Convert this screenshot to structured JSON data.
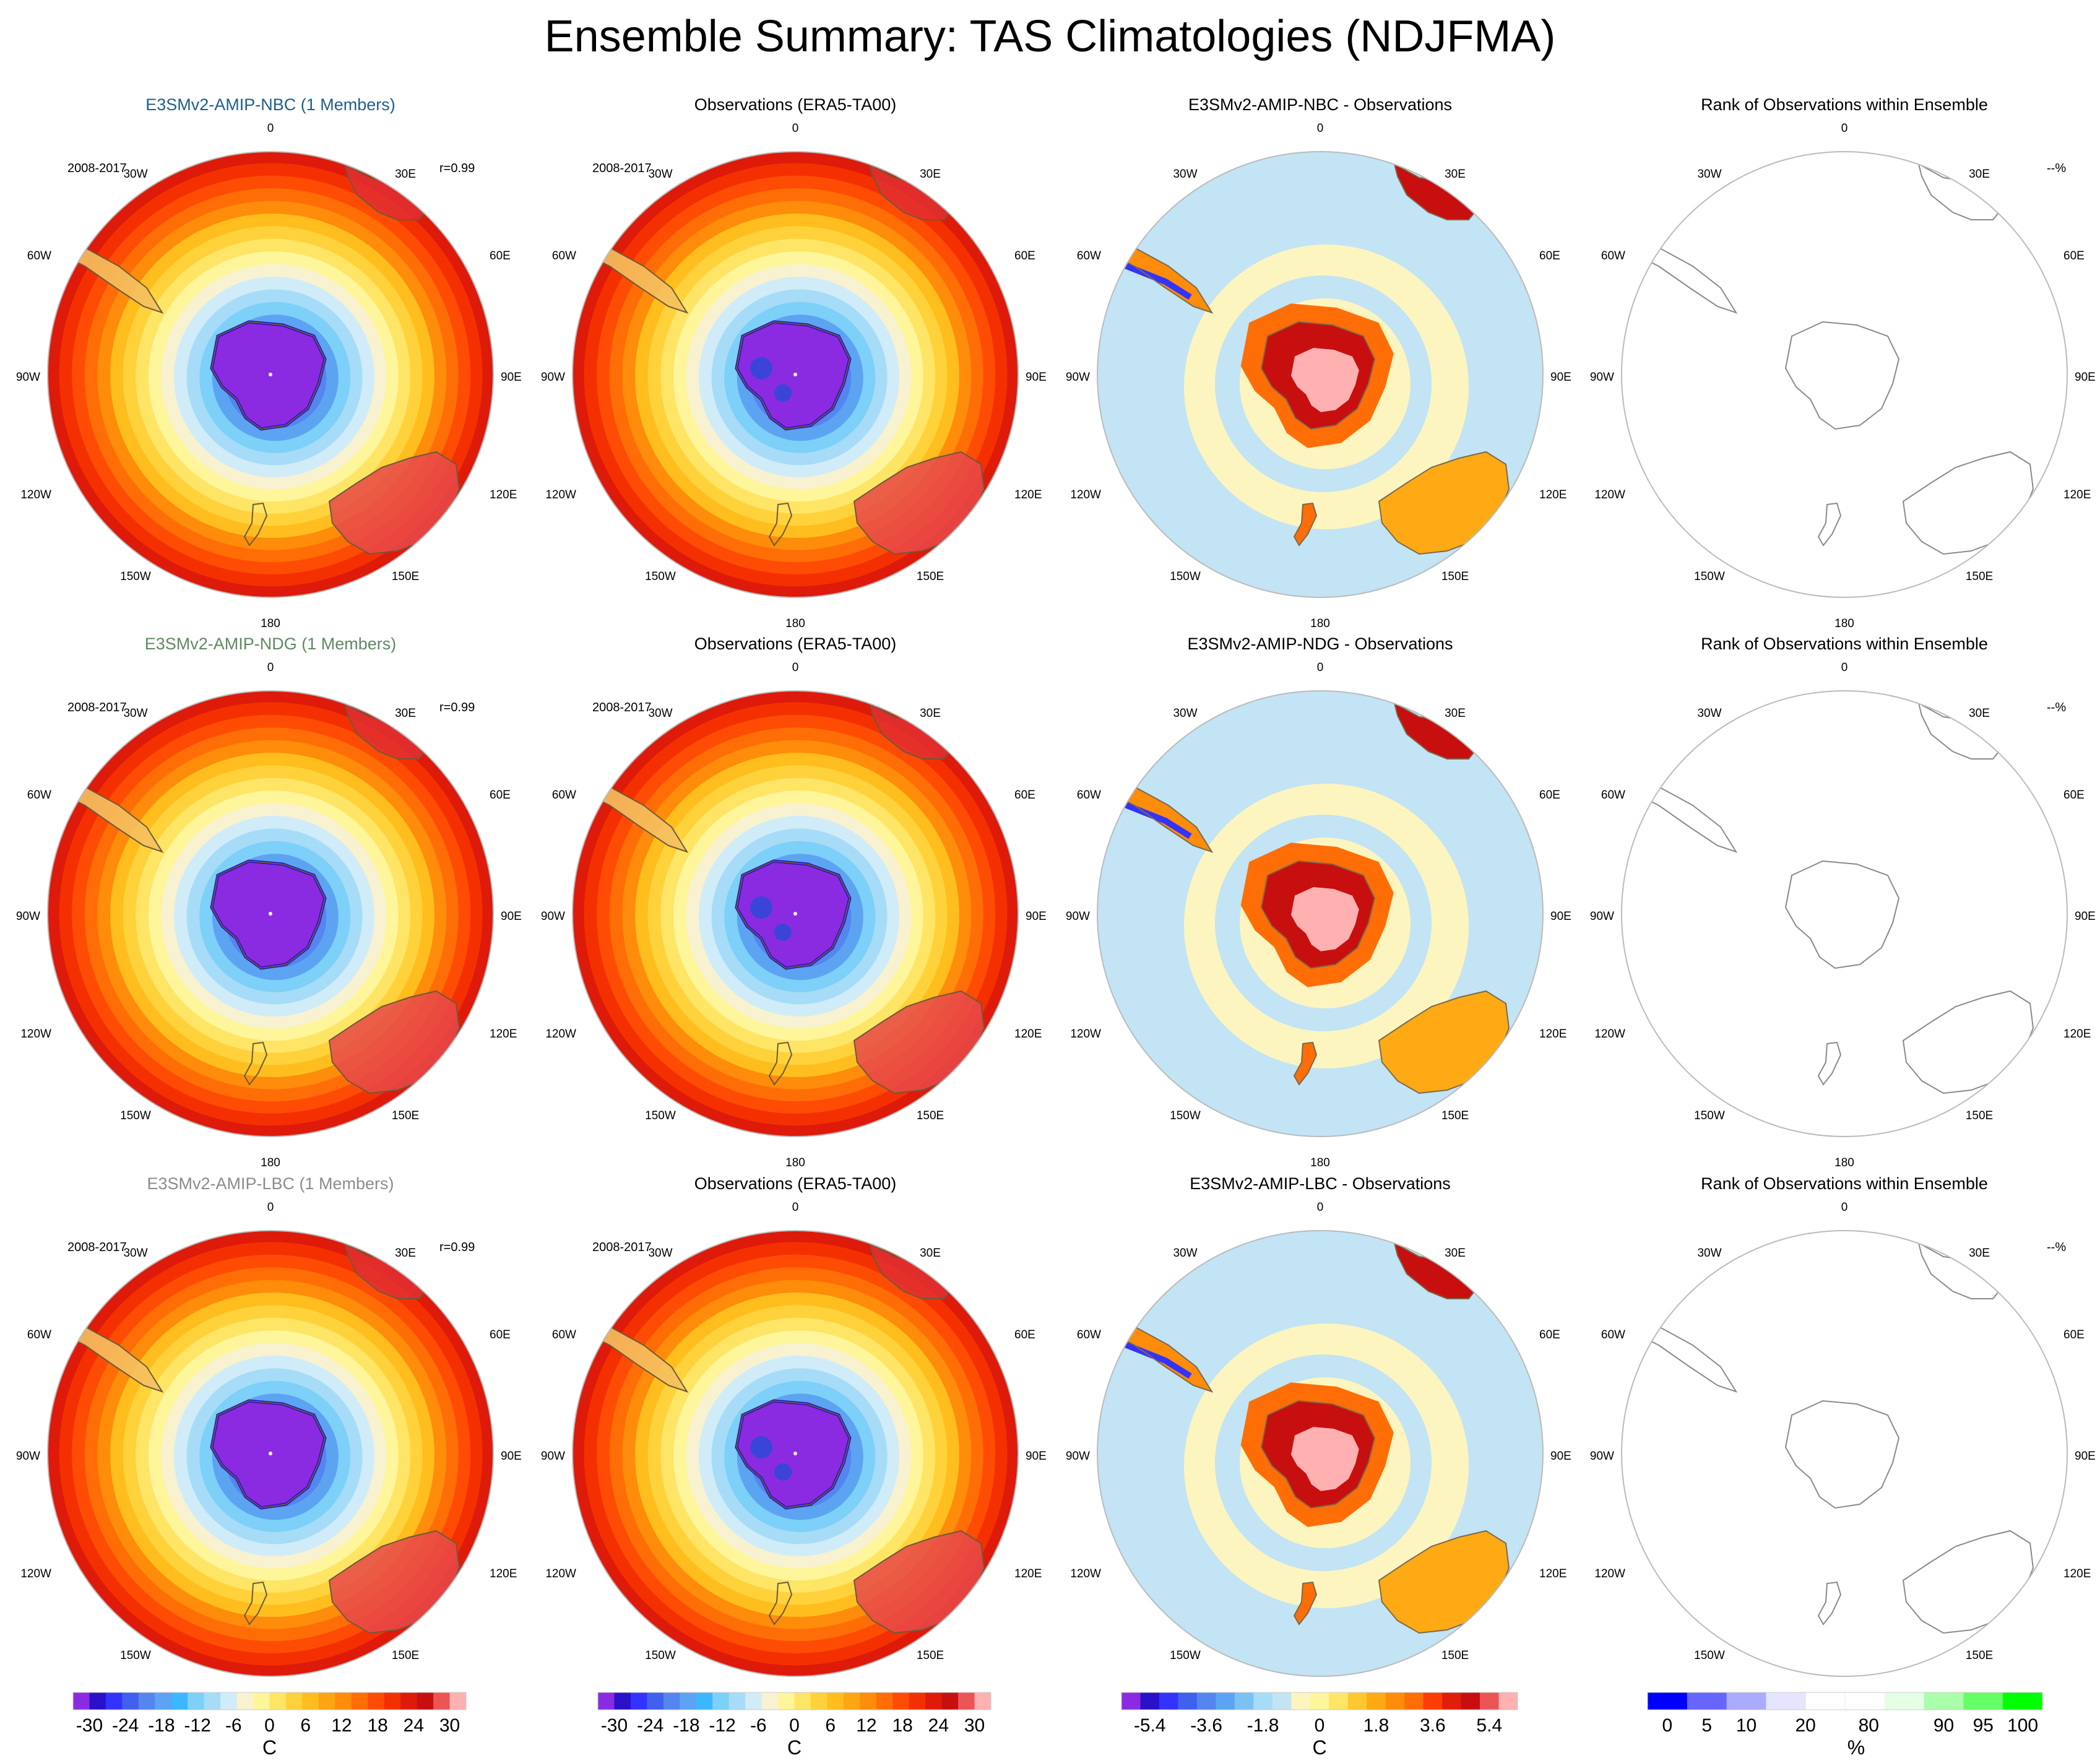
{
  "title": "Ensemble Summary: TAS Climatologies (NDJFMA)",
  "period_label": "2008-2017",
  "lon_labels": {
    "top": "0",
    "bottom": "180",
    "upper_left": "30W",
    "upper_right": "30E",
    "left_high": "60W",
    "right_high": "60E",
    "left": "90W",
    "right": "90E",
    "left_low": "120W",
    "right_low": "120E",
    "lower_left": "150W",
    "lower_right": "150E"
  },
  "rows": [
    {
      "model_title": "E3SMv2-AMIP-NBC (1 Members)",
      "model_title_color": "#1f5f8b",
      "correlation": "r=0.99",
      "obs_title": "Observations (ERA5-TA00)",
      "diff_title": "E3SMv2-AMIP-NBC - Observations",
      "rank_title": "Rank of Observations within Ensemble",
      "rank_value": "--%"
    },
    {
      "model_title": "E3SMv2-AMIP-NDG (1 Members)",
      "model_title_color": "#5f8a5f",
      "correlation": "r=0.99",
      "obs_title": "Observations (ERA5-TA00)",
      "diff_title": "E3SMv2-AMIP-NDG - Observations",
      "rank_title": "Rank of Observations within Ensemble",
      "rank_value": "--%"
    },
    {
      "model_title": "E3SMv2-AMIP-LBC (1 Members)",
      "model_title_color": "#8c8c8c",
      "correlation": "r=0.99",
      "obs_title": "Observations (ERA5-TA00)",
      "diff_title": "E3SMv2-AMIP-LBC - Observations",
      "rank_title": "Rank of Observations within Ensemble",
      "rank_value": "--%"
    }
  ],
  "colorbars": [
    {
      "name": "tas",
      "unit": "C",
      "colors": [
        "#8a2be2",
        "#2a12c8",
        "#3333ff",
        "#4060ee",
        "#5585ef",
        "#5ca4f2",
        "#3cb6ff",
        "#7dd0f8",
        "#a6dcf7",
        "#d0ecf8",
        "#f8f2d0",
        "#fff59a",
        "#ffe566",
        "#ffd23c",
        "#ffbe1e",
        "#ffa514",
        "#ff8c0a",
        "#ff6e06",
        "#ff4c05",
        "#f53000",
        "#de1a0a",
        "#c80f0f",
        "#eb5555",
        "#ffb0b0"
      ],
      "tick_labels": [
        "-30",
        "-24",
        "-18",
        "-12",
        "-6",
        "0",
        "6",
        "12",
        "18",
        "24",
        "30"
      ],
      "tick_positions": [
        1,
        3.2,
        5.4,
        7.6,
        9.8,
        12,
        14.2,
        16.4,
        18.6,
        20.8,
        23
      ]
    },
    {
      "name": "diff",
      "unit": "C",
      "colors": [
        "#8a2be2",
        "#2a12c8",
        "#3333ff",
        "#4060ee",
        "#5585ef",
        "#5ca4f2",
        "#7dc1f2",
        "#a6dcf7",
        "#c2e4f4",
        "#fdf5c0",
        "#fff59a",
        "#ffe566",
        "#ffc832",
        "#ffaa14",
        "#ff8c0a",
        "#ff6e06",
        "#ff3c05",
        "#e11e0a",
        "#c80f0f",
        "#eb5555",
        "#ffb0b0"
      ],
      "tick_labels": [
        "-5.4",
        "-3.6",
        "-1.8",
        "0",
        "1.8",
        "3.6",
        "5.4"
      ],
      "tick_positions": [
        1.5,
        4.5,
        7.5,
        10.5,
        13.5,
        16.5,
        19.5
      ]
    },
    {
      "name": "rank",
      "unit": "%",
      "colors": [
        "#0000ff",
        "#6666ff",
        "#aaaaff",
        "#e5e5ff",
        "#ffffff",
        "#ffffff",
        "#e5ffe5",
        "#aaffaa",
        "#66ff66",
        "#00ff00"
      ],
      "tick_labels": [
        "0",
        "5",
        "10",
        "20",
        "80",
        "90",
        "95",
        "100"
      ],
      "tick_positions": [
        0.5,
        1.5,
        2.5,
        4,
        5.6,
        7.5,
        8.5,
        9.5
      ]
    }
  ]
}
